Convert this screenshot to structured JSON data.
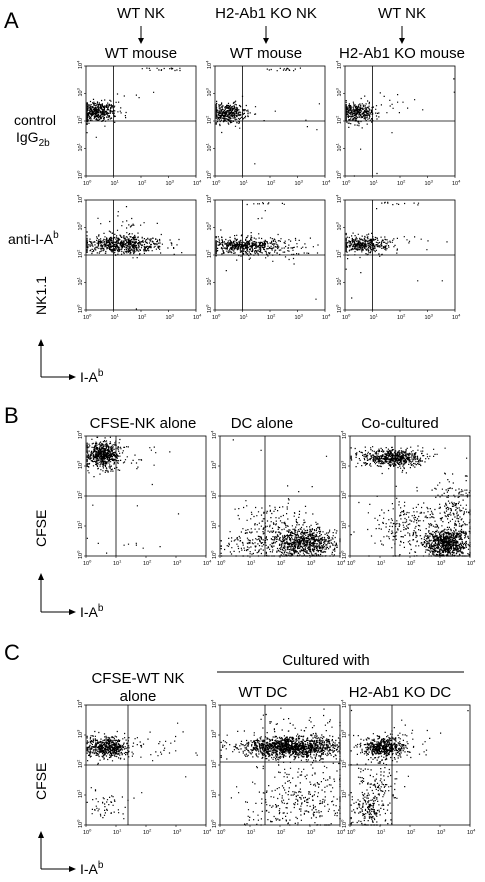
{
  "figure": {
    "panel_A": {
      "letter": "A",
      "columns": [
        {
          "top": "WT NK",
          "bottom": "WT mouse"
        },
        {
          "top": "H2-Ab1 KO NK",
          "bottom": "WT mouse"
        },
        {
          "top": "WT NK",
          "bottom": "H2-Ab1 KO mouse"
        }
      ],
      "row_labels": [
        {
          "line1": "control",
          "line2": "IgG",
          "sub": "2b"
        },
        {
          "line1": "anti-I-A",
          "line2": "",
          "sup": "b"
        }
      ],
      "y_axis": "NK1.1",
      "x_axis": {
        "text": "I-A",
        "sup": "b"
      }
    },
    "panel_B": {
      "letter": "B",
      "columns": [
        "CFSE-NK alone",
        "DC alone",
        "Co-cultured"
      ],
      "y_axis": "CFSE",
      "x_axis": {
        "text": "I-A",
        "sup": "b"
      }
    },
    "panel_C": {
      "letter": "C",
      "first_col": {
        "line1": "CFSE-WT NK",
        "line2": "alone"
      },
      "group_label": "Cultured with",
      "columns": [
        "WT DC",
        "H2-Ab1 KO DC"
      ],
      "y_axis": "CFSE",
      "x_axis": {
        "text": "I-A",
        "sup": "b"
      }
    },
    "tick_labels": {
      "exp": [
        "0",
        "1",
        "2",
        "3",
        "4"
      ],
      "base": "10"
    },
    "colors": {
      "ink": "#000000",
      "background": "#ffffff"
    }
  },
  "chart_data": [
    {
      "type": "scatter",
      "panel": "A",
      "row": "control IgG2b",
      "column": "WT NK / WT mouse",
      "xlabel": "I-Ab",
      "ylabel": "NK1.1",
      "xscale": "log",
      "yscale": "log",
      "xlim": [
        1,
        10000
      ],
      "ylim": [
        1,
        10000
      ]
    },
    {
      "type": "scatter",
      "panel": "A",
      "row": "control IgG2b",
      "column": "H2-Ab1 KO NK / WT mouse",
      "xlabel": "I-Ab",
      "ylabel": "NK1.1",
      "xscale": "log",
      "yscale": "log",
      "xlim": [
        1,
        10000
      ],
      "ylim": [
        1,
        10000
      ]
    },
    {
      "type": "scatter",
      "panel": "A",
      "row": "control IgG2b",
      "column": "WT NK / H2-Ab1 KO mouse",
      "xlabel": "I-Ab",
      "ylabel": "NK1.1",
      "xscale": "log",
      "yscale": "log",
      "xlim": [
        1,
        10000
      ],
      "ylim": [
        1,
        10000
      ]
    },
    {
      "type": "scatter",
      "panel": "A",
      "row": "anti-I-Ab",
      "column": "WT NK / WT mouse",
      "xlabel": "I-Ab",
      "ylabel": "NK1.1",
      "xscale": "log",
      "yscale": "log",
      "xlim": [
        1,
        10000
      ],
      "ylim": [
        1,
        10000
      ]
    },
    {
      "type": "scatter",
      "panel": "A",
      "row": "anti-I-Ab",
      "column": "H2-Ab1 KO NK / WT mouse",
      "xlabel": "I-Ab",
      "ylabel": "NK1.1",
      "xscale": "log",
      "yscale": "log",
      "xlim": [
        1,
        10000
      ],
      "ylim": [
        1,
        10000
      ]
    },
    {
      "type": "scatter",
      "panel": "A",
      "row": "anti-I-Ab",
      "column": "WT NK / H2-Ab1 KO mouse",
      "xlabel": "I-Ab",
      "ylabel": "NK1.1",
      "xscale": "log",
      "yscale": "log",
      "xlim": [
        1,
        10000
      ],
      "ylim": [
        1,
        10000
      ]
    },
    {
      "type": "scatter",
      "panel": "B",
      "column": "CFSE-NK alone",
      "xlabel": "I-Ab",
      "ylabel": "CFSE",
      "xscale": "log",
      "yscale": "log",
      "xlim": [
        1,
        10000
      ],
      "ylim": [
        1,
        10000
      ]
    },
    {
      "type": "scatter",
      "panel": "B",
      "column": "DC alone",
      "xlabel": "I-Ab",
      "ylabel": "CFSE",
      "xscale": "log",
      "yscale": "log",
      "xlim": [
        1,
        10000
      ],
      "ylim": [
        1,
        10000
      ]
    },
    {
      "type": "scatter",
      "panel": "B",
      "column": "Co-cultured",
      "xlabel": "I-Ab",
      "ylabel": "CFSE",
      "xscale": "log",
      "yscale": "log",
      "xlim": [
        1,
        10000
      ],
      "ylim": [
        1,
        10000
      ]
    },
    {
      "type": "scatter",
      "panel": "C",
      "column": "CFSE-WT NK alone",
      "xlabel": "I-Ab",
      "ylabel": "CFSE",
      "xscale": "log",
      "yscale": "log",
      "xlim": [
        1,
        10000
      ],
      "ylim": [
        1,
        10000
      ]
    },
    {
      "type": "scatter",
      "panel": "C",
      "column": "WT DC",
      "xlabel": "I-Ab",
      "ylabel": "CFSE",
      "xscale": "log",
      "yscale": "log",
      "xlim": [
        1,
        10000
      ],
      "ylim": [
        1,
        10000
      ]
    },
    {
      "type": "scatter",
      "panel": "C",
      "column": "H2-Ab1 KO DC",
      "xlabel": "I-Ab",
      "ylabel": "CFSE",
      "xscale": "log",
      "yscale": "log",
      "xlim": [
        1,
        10000
      ],
      "ylim": [
        1,
        10000
      ]
    }
  ]
}
